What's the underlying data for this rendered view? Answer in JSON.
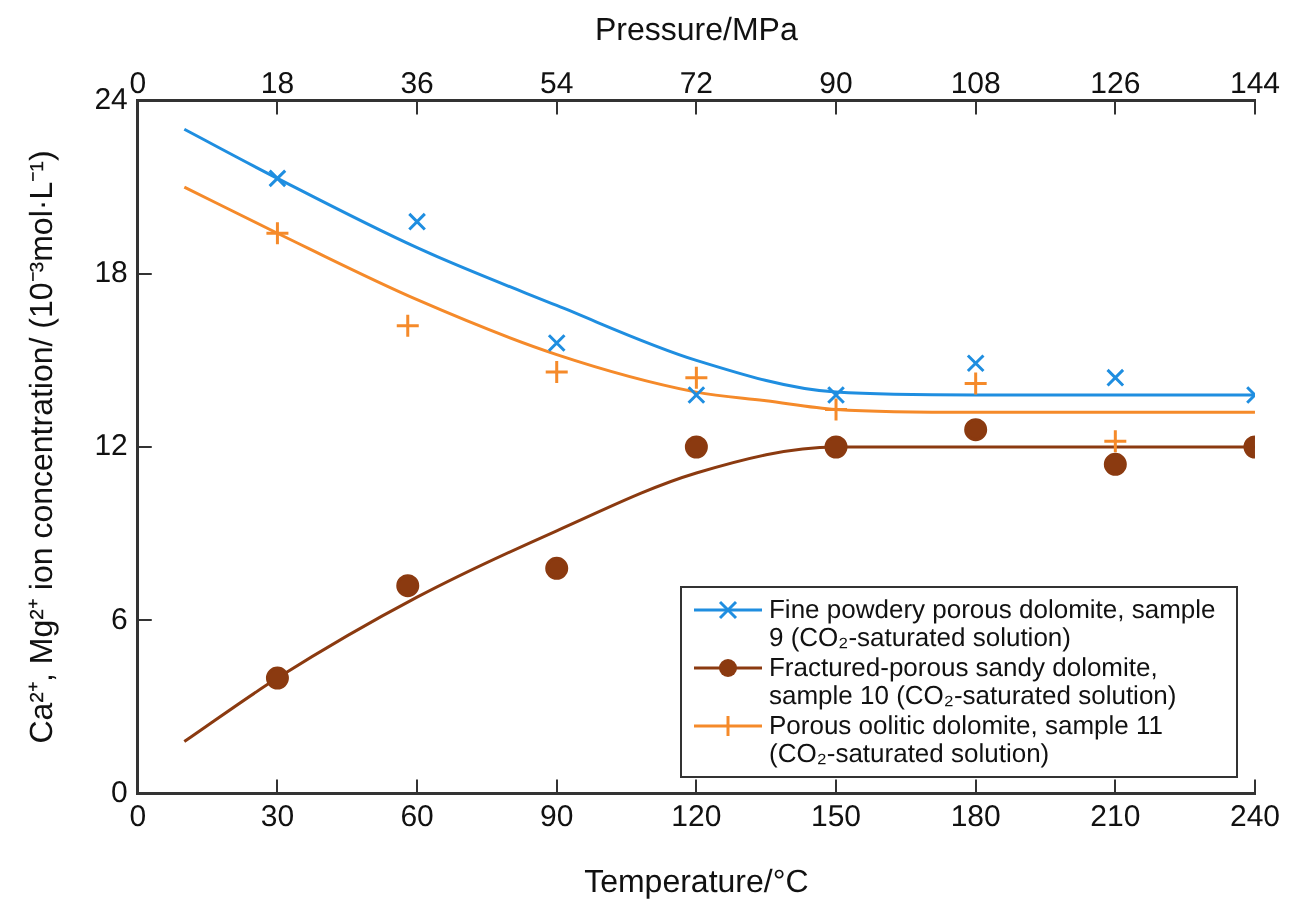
{
  "chart_data": {
    "type": "scatter",
    "xlabel": "Temperature/°C",
    "x2label": "Pressure/MPa",
    "ylabel": "Ca²⁺, Mg²⁺ ion concentration/ (10⁻³mol·L⁻¹)",
    "xlim": [
      0,
      240
    ],
    "xticks": [
      0,
      30,
      60,
      90,
      120,
      150,
      180,
      210,
      240
    ],
    "x2lim": [
      0,
      144
    ],
    "x2ticks": [
      0,
      18,
      36,
      54,
      72,
      90,
      108,
      126,
      144
    ],
    "ylim": [
      0,
      24
    ],
    "yticks": [
      0,
      6,
      12,
      18,
      24
    ],
    "grid": false,
    "legend": "bottom right",
    "series": [
      {
        "name": "Fine powdery porous dolomite, sample 9 (CO₂-saturated solution)",
        "color": "#1f8ee0",
        "marker": "x",
        "x": [
          30,
          60,
          90,
          120,
          150,
          180,
          210,
          240
        ],
        "values": [
          21.3,
          19.8,
          15.6,
          13.8,
          13.8,
          14.9,
          14.4,
          13.8
        ]
      },
      {
        "name": "Fractured-porous sandy dolomite, sample 10 (CO₂-saturated solution)",
        "color": "#8b3a10",
        "marker": "circle",
        "x": [
          30,
          58,
          90,
          120,
          150,
          180,
          210,
          240
        ],
        "values": [
          4.0,
          7.2,
          7.8,
          12.0,
          12.0,
          12.6,
          11.4,
          12.0
        ]
      },
      {
        "name": "Porous oolitic dolomite, sample 11 (CO₂-saturated solution)",
        "color": "#f58a2a",
        "marker": "cross",
        "x": [
          30,
          58,
          90,
          120,
          150,
          180,
          210
        ],
        "values": [
          19.4,
          16.2,
          14.6,
          14.4,
          13.3,
          14.2,
          12.2
        ]
      },
      {
        "type": "line",
        "color": "#1f8ee0",
        "marker": "none",
        "x": [
          10,
          30,
          60,
          90,
          120,
          150,
          180,
          240
        ],
        "values": [
          23.0,
          21.3,
          18.9,
          16.9,
          15.0,
          13.9,
          13.8,
          13.8
        ]
      },
      {
        "type": "line",
        "color": "#8b3a10",
        "marker": "none",
        "x": [
          10,
          30,
          60,
          90,
          120,
          150,
          180,
          240
        ],
        "values": [
          1.8,
          4.0,
          6.8,
          9.1,
          11.1,
          12.0,
          12.0,
          12.0
        ]
      },
      {
        "type": "line",
        "color": "#f58a2a",
        "marker": "none",
        "x": [
          10,
          30,
          60,
          90,
          120,
          135,
          150,
          180,
          240
        ],
        "values": [
          21.0,
          19.4,
          17.1,
          15.2,
          13.9,
          13.6,
          13.3,
          13.2,
          13.2
        ]
      }
    ]
  }
}
